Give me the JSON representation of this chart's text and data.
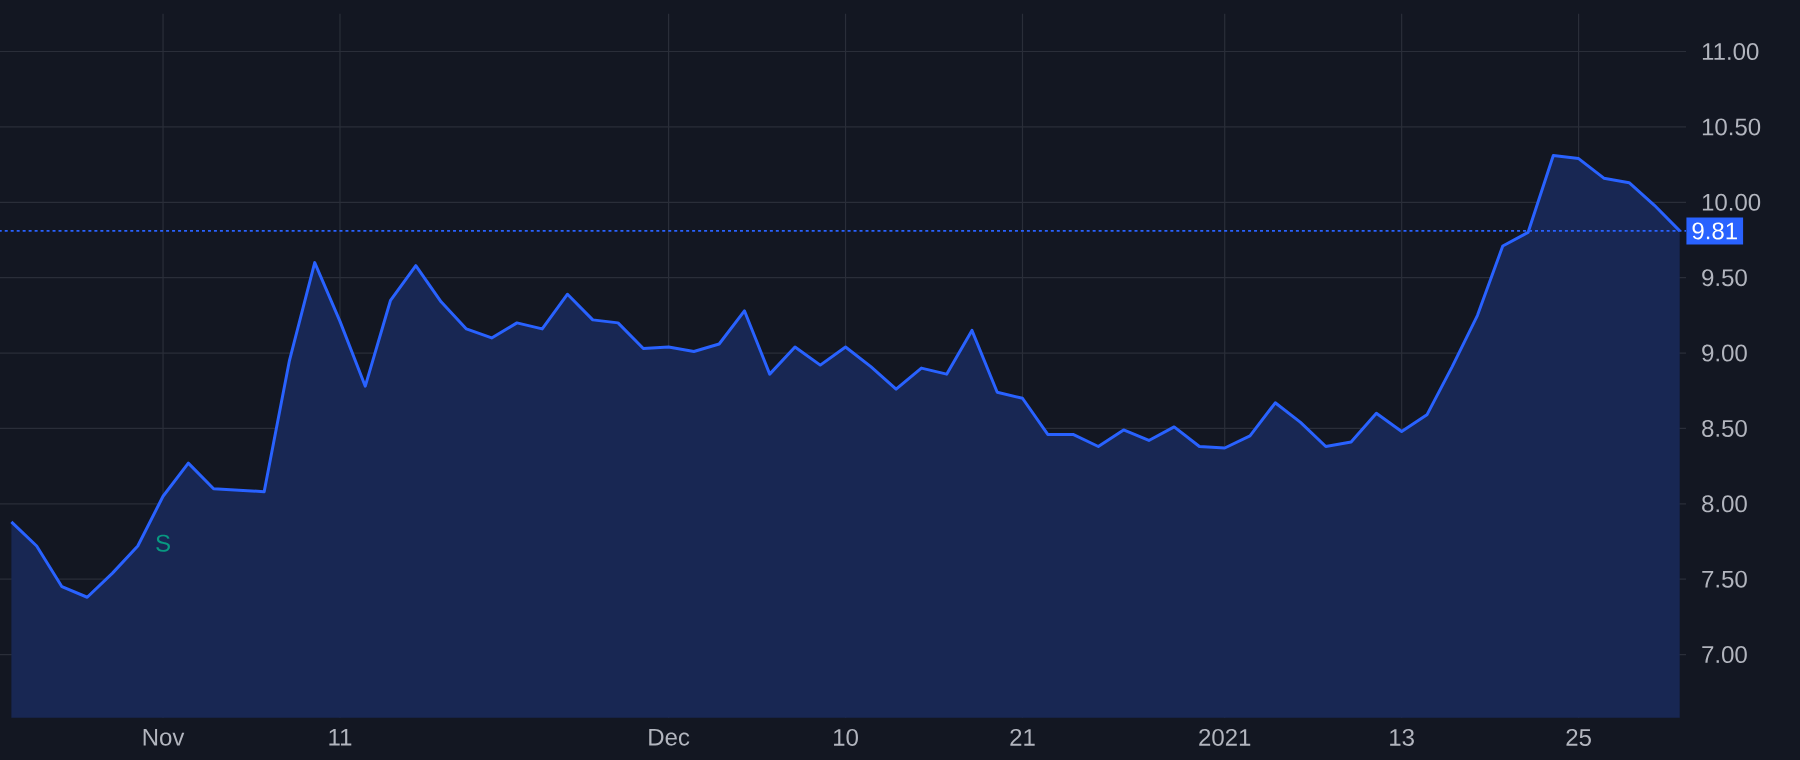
{
  "chart_data": {
    "type": "area",
    "categories": [
      null,
      null,
      null,
      null,
      null,
      null,
      "Nov",
      null,
      null,
      null,
      null,
      null,
      null,
      "11",
      null,
      null,
      null,
      null,
      null,
      null,
      null,
      null,
      null,
      null,
      null,
      null,
      "Dec",
      null,
      null,
      null,
      null,
      null,
      null,
      "10",
      null,
      null,
      null,
      null,
      null,
      null,
      "21",
      null,
      null,
      null,
      null,
      null,
      null,
      null,
      "2021",
      null,
      null,
      null,
      null,
      null,
      null,
      "13",
      null,
      null,
      null,
      null,
      null,
      null,
      "25",
      null,
      null,
      null,
      null
    ],
    "series": [
      {
        "color": "#2962ff",
        "values": [
          7.88,
          7.72,
          7.45,
          7.38,
          7.54,
          7.72,
          8.05,
          8.27,
          8.1,
          8.09,
          8.08,
          8.95,
          9.6,
          9.21,
          8.78,
          9.35,
          9.58,
          9.34,
          9.16,
          9.1,
          9.2,
          9.16,
          9.39,
          9.22,
          9.2,
          9.03,
          9.04,
          9.01,
          9.06,
          9.28,
          8.86,
          9.04,
          8.92,
          9.04,
          8.91,
          8.76,
          8.9,
          8.86,
          9.15,
          8.74,
          8.7,
          8.46,
          8.46,
          8.38,
          8.49,
          8.42,
          8.51,
          8.38,
          8.37,
          8.45,
          8.67,
          8.54,
          8.38,
          8.41,
          8.6,
          8.48,
          8.59,
          8.91,
          9.25,
          9.71,
          9.8,
          10.31,
          10.29,
          10.16,
          10.13,
          9.98,
          9.81
        ]
      }
    ],
    "ylim": [
      6.58,
      11.25
    ],
    "yticks": [
      {
        "value": 7,
        "label": "7.00"
      },
      {
        "value": 7.5,
        "label": "7.50"
      },
      {
        "value": 8,
        "label": "8.00"
      },
      {
        "value": 8.5,
        "label": "8.50"
      },
      {
        "value": 9,
        "label": "9.00"
      },
      {
        "value": 9.5,
        "label": "9.50"
      },
      {
        "value": 10,
        "label": "10.00"
      },
      {
        "value": 10.5,
        "label": "10.50"
      },
      {
        "value": 11,
        "label": "11.00"
      }
    ],
    "grid": true,
    "ref_lines": [
      {
        "axis": "y",
        "value": 9.81,
        "label": "9.81",
        "color": "#2962ff",
        "line_style": "dotted"
      }
    ],
    "annotations": [
      {
        "text": "S",
        "x": "Nov",
        "y": 8.05
      }
    ]
  }
}
